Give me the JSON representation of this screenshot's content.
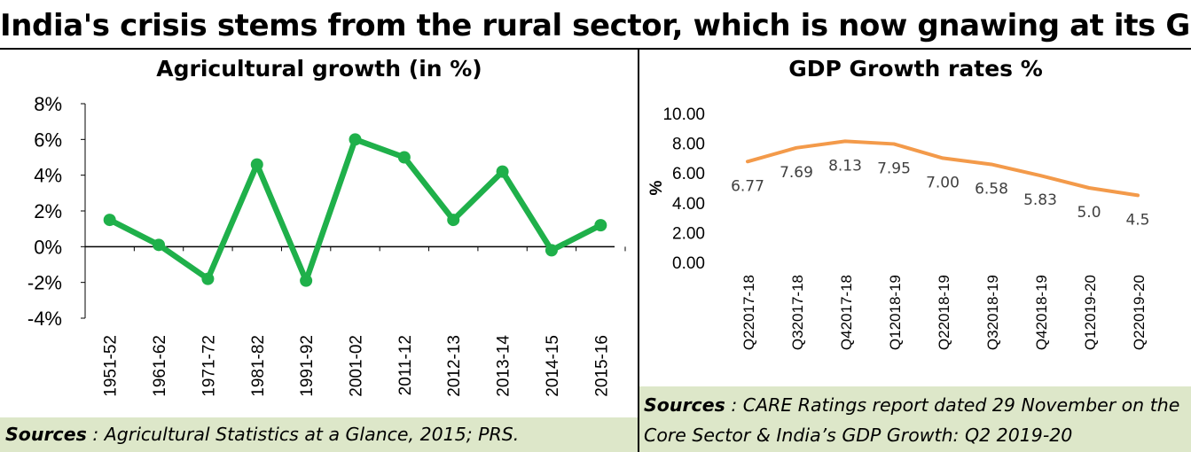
{
  "title": "India's crisis stems from the rural sector, which is now gnawing at its GDP",
  "left_panel": {
    "title": "Agricultural growth (in %)",
    "source_key": "Sources",
    "source_text": " : Agricultural Statistics at a Glance, 2015; PRS."
  },
  "right_panel": {
    "title": "GDP Growth rates %",
    "source_key": "Sources",
    "source_text": " : CARE Ratings report dated 29 November on the Core Sector & India’s GDP Growth: Q2 2019-20"
  },
  "colors": {
    "agri_line": "#1fb04a",
    "gdp_line": "#f39a4a",
    "source_bg": "#dde7c9"
  },
  "chart_data": [
    {
      "type": "line",
      "title": "Agricultural growth (in %)",
      "categories": [
        "1951-52",
        "1961-62",
        "1971-72",
        "1981-82",
        "1991-92",
        "2001-02",
        "2011-12",
        "2012-13",
        "2013-14",
        "2014-15",
        "2015-16"
      ],
      "values": [
        1.5,
        0.1,
        -1.8,
        4.6,
        -1.9,
        6.0,
        5.0,
        1.5,
        4.2,
        -0.2,
        1.2
      ],
      "ylim": [
        -4,
        8
      ],
      "yticks": [
        "8%",
        "6%",
        "4%",
        "2%",
        "0%",
        "-2%",
        "-4%"
      ],
      "xlabel": "",
      "ylabel": "",
      "grid": false,
      "legend": "none"
    },
    {
      "type": "line",
      "title": "GDP Growth rates %",
      "categories": [
        "Q22017-18",
        "Q32017-18",
        "Q42017-18",
        "Q12018-19",
        "Q22018-19",
        "Q32018-19",
        "Q42018-19",
        "Q12019-20",
        "Q22019-20"
      ],
      "values": [
        6.77,
        7.69,
        8.13,
        7.95,
        7.0,
        6.58,
        5.83,
        5.0,
        4.5
      ],
      "data_labels": [
        "6.77",
        "7.69",
        "8.13",
        "7.95",
        "7.00",
        "6.58",
        "5.83",
        "5.0",
        "4.5"
      ],
      "ylim": [
        0,
        10
      ],
      "yticks": [
        "10.00",
        "8.00",
        "6.00",
        "4.00",
        "2.00",
        "0.00"
      ],
      "xlabel": "",
      "ylabel": "%",
      "grid": false,
      "legend": "none"
    }
  ]
}
